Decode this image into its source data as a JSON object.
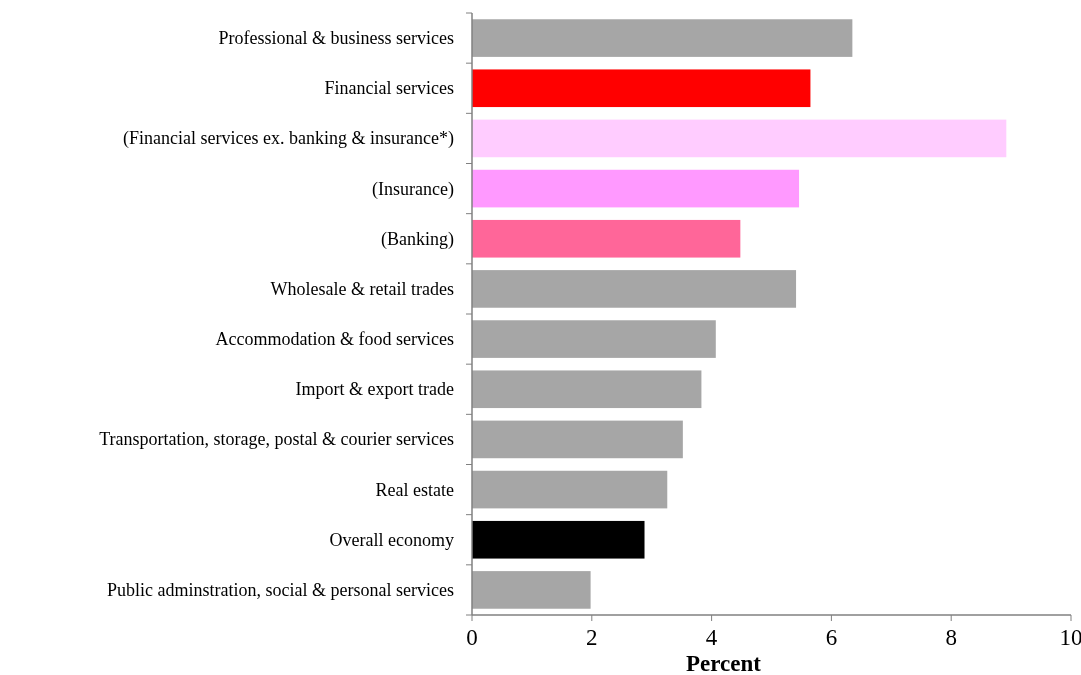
{
  "chart_data": {
    "type": "bar",
    "orientation": "horizontal",
    "xlabel": "Percent",
    "categories": [
      "Professional & business services",
      "Financial services",
      "(Financial services ex. banking & insurance*)",
      "(Insurance)",
      "(Banking)",
      "Wholesale & retail trades",
      "Accommodation & food services",
      "Import & export trade",
      "Transportation, storage, postal & courier services",
      "Real estate",
      "Overall economy",
      "Public adminstration, social & personal services"
    ],
    "values": [
      6.35,
      5.65,
      8.92,
      5.46,
      4.48,
      5.41,
      4.07,
      3.83,
      3.52,
      3.26,
      2.88,
      1.98
    ],
    "colors": [
      "#a6a6a6",
      "#ff0000",
      "#ffccff",
      "#ff99ff",
      "#ff6699",
      "#a6a6a6",
      "#a6a6a6",
      "#a6a6a6",
      "#a6a6a6",
      "#a6a6a6",
      "#000000",
      "#a6a6a6"
    ],
    "xlim": [
      0,
      10
    ],
    "xticks": [
      0,
      2,
      4,
      6,
      8,
      10
    ]
  }
}
